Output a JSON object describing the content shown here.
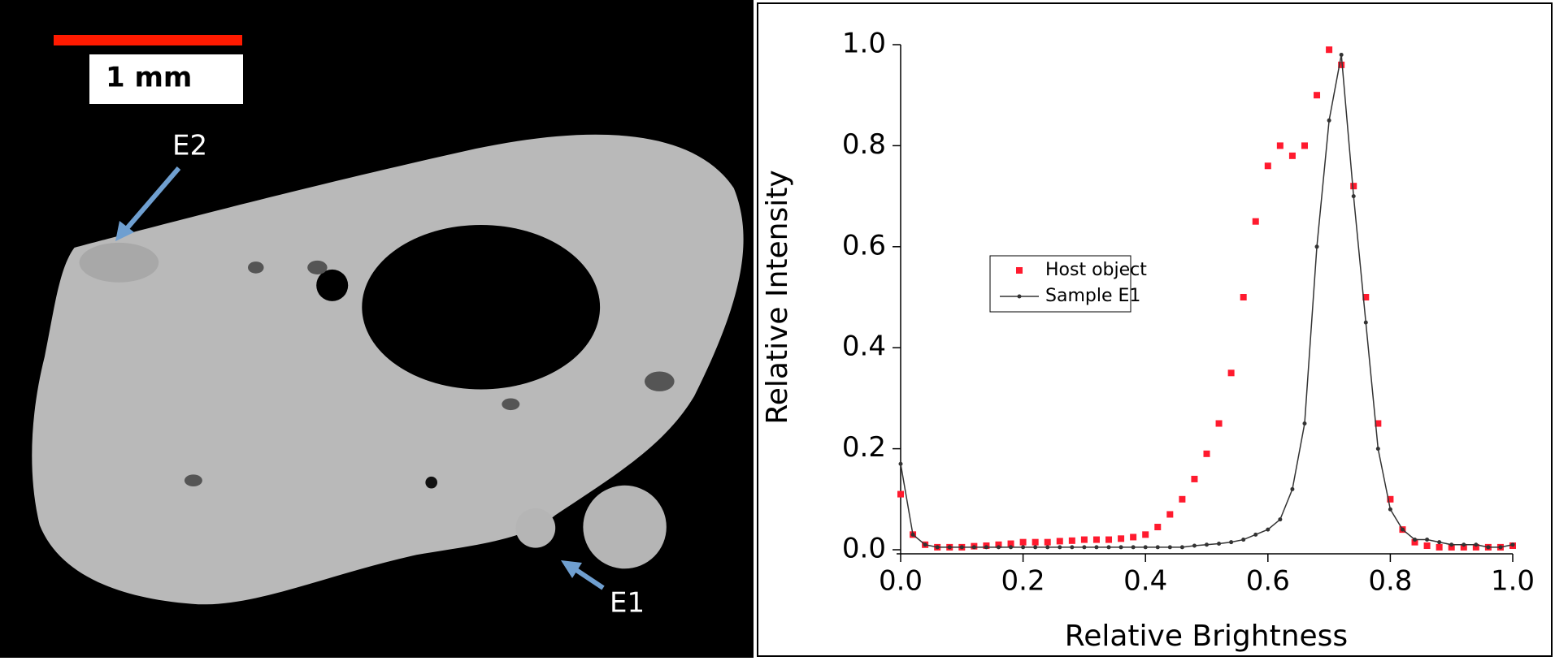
{
  "image": {
    "scale_bar_label": "1 mm",
    "labels": [
      "E2",
      "E1"
    ]
  },
  "chart_data": {
    "type": "line",
    "x_label": "Relative Brightness",
    "y_label": "Relative Intensity",
    "x": [
      0,
      0.02,
      0.04,
      0.06,
      0.08,
      0.1,
      0.12,
      0.14,
      0.16,
      0.18,
      0.2,
      0.22,
      0.24,
      0.26,
      0.28,
      0.3,
      0.32,
      0.34,
      0.36,
      0.38,
      0.4,
      0.42,
      0.44,
      0.46,
      0.48,
      0.5,
      0.52,
      0.54,
      0.56,
      0.58,
      0.6,
      0.62,
      0.64,
      0.66,
      0.68,
      0.7,
      0.72,
      0.74,
      0.76,
      0.78,
      0.8,
      0.82,
      0.84,
      0.86,
      0.88,
      0.9,
      0.92,
      0.94,
      0.96,
      0.98,
      1
    ],
    "series": [
      {
        "name": "Host object",
        "color": "#ff1a2e",
        "marker": "square",
        "line": false,
        "values": [
          0.11,
          0.03,
          0.01,
          0.005,
          0.005,
          0.005,
          0.007,
          0.008,
          0.01,
          0.012,
          0.015,
          0.015,
          0.015,
          0.017,
          0.018,
          0.02,
          0.02,
          0.02,
          0.022,
          0.025,
          0.03,
          0.045,
          0.07,
          0.1,
          0.14,
          0.19,
          0.25,
          0.35,
          0.5,
          0.65,
          0.76,
          0.8,
          0.78,
          0.8,
          0.9,
          0.99,
          0.96,
          0.72,
          0.5,
          0.25,
          0.1,
          0.04,
          0.015,
          0.008,
          0.005,
          0.005,
          0.005,
          0.005,
          0.005,
          0.005,
          0.008
        ]
      },
      {
        "name": "Sample E1",
        "color": "#333333",
        "marker": "dot",
        "line": true,
        "values": [
          0.17,
          0.03,
          0.01,
          0.005,
          0.005,
          0.005,
          0.005,
          0.005,
          0.005,
          0.005,
          0.005,
          0.005,
          0.005,
          0.005,
          0.005,
          0.005,
          0.005,
          0.005,
          0.005,
          0.005,
          0.005,
          0.005,
          0.005,
          0.005,
          0.008,
          0.01,
          0.012,
          0.015,
          0.02,
          0.03,
          0.04,
          0.06,
          0.12,
          0.25,
          0.6,
          0.85,
          0.98,
          0.7,
          0.45,
          0.2,
          0.08,
          0.04,
          0.02,
          0.02,
          0.015,
          0.01,
          0.01,
          0.01,
          0.005,
          0.005,
          0.01
        ]
      }
    ],
    "xlim": [
      0,
      1
    ],
    "ylim": [
      0,
      1
    ],
    "xticks": [
      {
        "value": 0,
        "label": "0.0"
      },
      0.2,
      0.4,
      0.6,
      0.8,
      {
        "value": 1,
        "label": "1.0"
      }
    ],
    "yticks": [
      {
        "value": 0,
        "label": "0.0"
      },
      0.2,
      0.4,
      0.6,
      0.8,
      {
        "value": 1,
        "label": "1.0"
      }
    ],
    "legend": "left"
  }
}
